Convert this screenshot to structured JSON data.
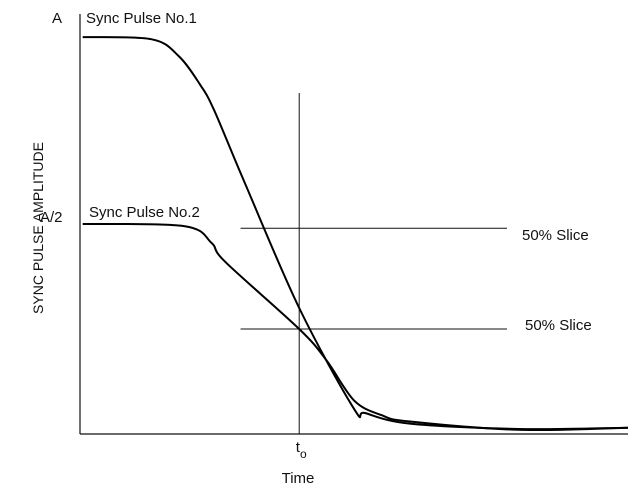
{
  "chart_data": {
    "type": "line",
    "title": "",
    "xlabel": "Time",
    "ylabel": "SYNC PULSE AMPLITUDE",
    "y_ticks": [
      "A",
      "A/2"
    ],
    "x_marker": {
      "base": "t",
      "subscript": "o",
      "x": 0.4
    },
    "grid": false,
    "xlim": [
      0,
      1
    ],
    "ylim": [
      0,
      1
    ],
    "series": [
      {
        "name": "Sync Pulse No.1",
        "points": [
          [
            0.005,
            0.945
          ],
          [
            0.13,
            0.94
          ],
          [
            0.18,
            0.9
          ],
          [
            0.22,
            0.83
          ],
          [
            0.245,
            0.77
          ],
          [
            0.3,
            0.6
          ],
          [
            0.4,
            0.3
          ],
          [
            0.5,
            0.06
          ],
          [
            0.52,
            0.05
          ],
          [
            0.6,
            0.025
          ],
          [
            0.8,
            0.012
          ],
          [
            1.0,
            0.015
          ]
        ]
      },
      {
        "name": "Sync Pulse No.2",
        "points": [
          [
            0.005,
            0.5
          ],
          [
            0.19,
            0.495
          ],
          [
            0.24,
            0.455
          ],
          [
            0.265,
            0.41
          ],
          [
            0.4,
            0.25
          ],
          [
            0.45,
            0.175
          ],
          [
            0.5,
            0.08
          ],
          [
            0.55,
            0.045
          ],
          [
            0.6,
            0.03
          ],
          [
            0.8,
            0.01
          ],
          [
            1.0,
            0.015
          ]
        ]
      }
    ],
    "slices": [
      {
        "label": "50% Slice",
        "y": 0.49,
        "x_start": 0.293
      },
      {
        "label": "50% Slice",
        "y": 0.25,
        "x_start": 0.293
      }
    ]
  }
}
